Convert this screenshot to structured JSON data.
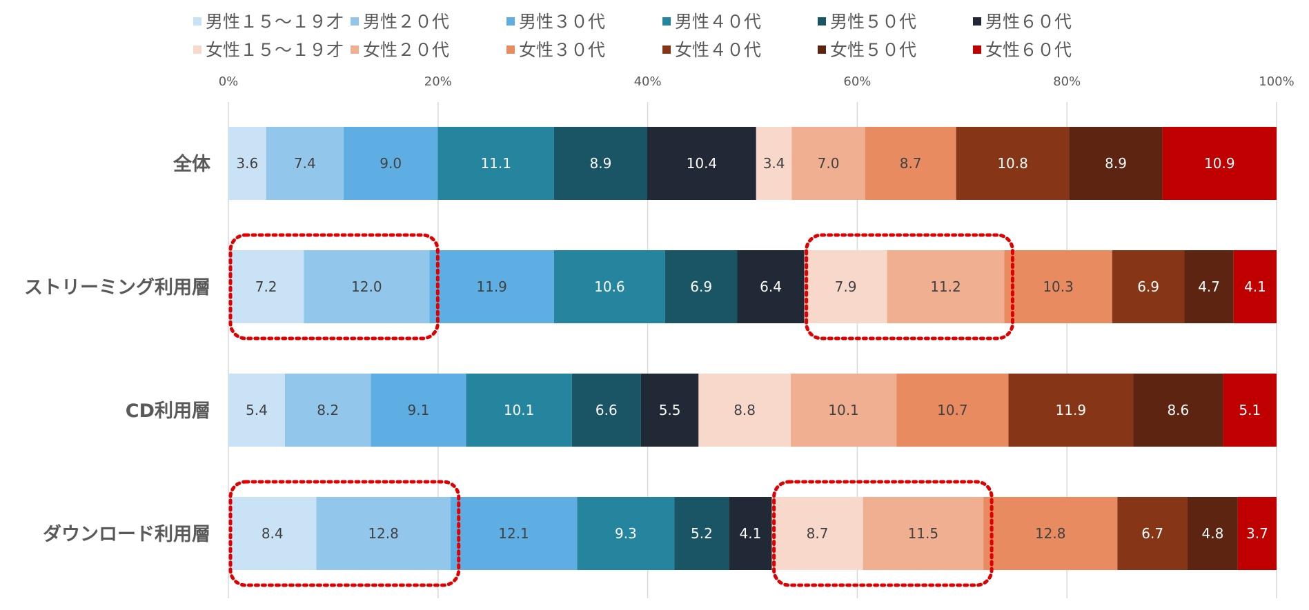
{
  "chart_data": {
    "type": "bar",
    "orientation": "horizontal",
    "stacked": "100%",
    "categories": [
      "全体",
      "ストリーミング利用層",
      "CD利用層",
      "ダウンロード利用層"
    ],
    "series": [
      {
        "name": "男性１５～１９才",
        "color": "#c9e2f5",
        "values": [
          3.6,
          7.2,
          5.4,
          8.4
        ]
      },
      {
        "name": "男性２０代",
        "color": "#93c6eb",
        "values": [
          7.4,
          12.0,
          8.2,
          12.8
        ]
      },
      {
        "name": "男性３０代",
        "color": "#5faee3",
        "values": [
          9.0,
          11.9,
          9.1,
          12.1
        ]
      },
      {
        "name": "男性４０代",
        "color": "#25849e",
        "values": [
          11.1,
          10.6,
          10.1,
          9.3
        ]
      },
      {
        "name": "男性５０代",
        "color": "#1a5566",
        "values": [
          8.9,
          6.9,
          6.6,
          5.2
        ]
      },
      {
        "name": "男性６０代",
        "color": "#212836",
        "values": [
          10.4,
          6.4,
          5.5,
          4.1
        ]
      },
      {
        "name": "女性１５～１９才",
        "color": "#f8d8cb",
        "values": [
          3.4,
          7.9,
          8.8,
          8.7
        ]
      },
      {
        "name": "女性２０代",
        "color": "#f1af92",
        "values": [
          7.0,
          11.2,
          10.1,
          11.5
        ]
      },
      {
        "name": "女性３０代",
        "color": "#e88b61",
        "values": [
          8.7,
          10.3,
          10.7,
          12.8
        ]
      },
      {
        "name": "女性４０代",
        "color": "#863516",
        "values": [
          10.8,
          6.9,
          11.9,
          6.7
        ]
      },
      {
        "name": "女性５０代",
        "color": "#5c2411",
        "values": [
          8.9,
          4.7,
          8.6,
          4.8
        ]
      },
      {
        "name": "女性６０代",
        "color": "#c00000",
        "values": [
          10.9,
          4.1,
          5.1,
          3.7
        ]
      }
    ],
    "xticks": [
      "0%",
      "20%",
      "40%",
      "60%",
      "80%",
      "100%"
    ],
    "xlim": [
      0,
      100
    ],
    "x_axis_position": "top",
    "grid": true,
    "legend_position": "top",
    "dark_label_text": "#404040",
    "light_label_text": "#ffffff",
    "highlights": [
      {
        "category": "ストリーミング利用層",
        "series_from": 0,
        "series_to": 1
      },
      {
        "category": "ストリーミング利用層",
        "series_from": 6,
        "series_to": 7
      },
      {
        "category": "ダウンロード利用層",
        "series_from": 0,
        "series_to": 1
      },
      {
        "category": "ダウンロード利用層",
        "series_from": 6,
        "series_to": 7
      }
    ],
    "highlight_color": "#e00000"
  }
}
